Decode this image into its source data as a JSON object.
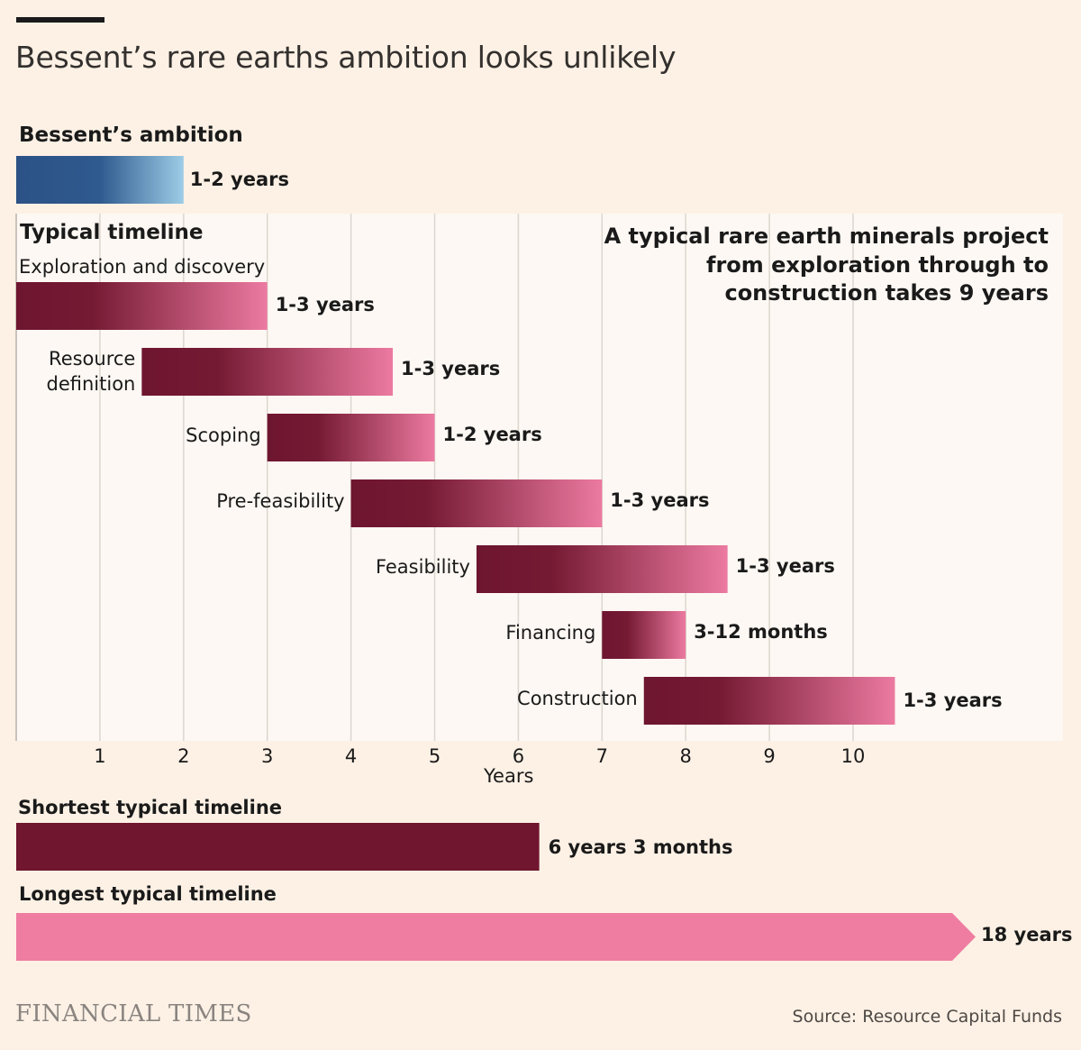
{
  "title": "Bessent’s rare earths ambition looks unlikely",
  "callout": [
    "A typical rare earth minerals project",
    "from exploration through to",
    "construction takes 9 years"
  ],
  "source": "Source: Resource Capital Funds",
  "publisher": "FINANCIAL TIMES",
  "colors": {
    "background": "#fdf1e5",
    "panel": "#fdf8f3",
    "claret_dark": "#6e1530",
    "claret_light": "#ec7aa1",
    "ambition_dark": "#2c5286",
    "ambition_light": "#9ccce6",
    "shortest": "#70162f",
    "longest": "#ee7da1",
    "gridline": "#dcd6cf"
  },
  "chart_data": {
    "type": "gantt",
    "xlabel": "Years",
    "xlim": [
      0,
      11.5
    ],
    "xticks": [
      1,
      2,
      3,
      4,
      5,
      6,
      7,
      8,
      9,
      10
    ],
    "ambition": {
      "heading": "Bessent’s ambition",
      "start": 0,
      "end": 2,
      "label": "1-2 years"
    },
    "typical_heading": "Typical timeline",
    "stages": [
      {
        "name": "Exploration and discovery",
        "start": 0,
        "end": 3,
        "duration": "1-3 years"
      },
      {
        "name": "Resource definition",
        "start": 1.5,
        "end": 4.5,
        "duration": "1-3 years"
      },
      {
        "name": "Scoping",
        "start": 3,
        "end": 5,
        "duration": "1-2 years"
      },
      {
        "name": "Pre-feasibility",
        "start": 4,
        "end": 7,
        "duration": "1-3 years"
      },
      {
        "name": "Feasibility",
        "start": 5.5,
        "end": 8.5,
        "duration": "1-3 years"
      },
      {
        "name": "Financing",
        "start": 7,
        "end": 8,
        "duration": "3-12 months"
      },
      {
        "name": "Construction",
        "start": 7.5,
        "end": 10.5,
        "duration": "1-3 years"
      }
    ],
    "shortest": {
      "heading": "Shortest typical timeline",
      "value": 6.25,
      "label": "6 years 3 months"
    },
    "longest": {
      "heading": "Longest typical timeline",
      "value": 18,
      "label": "18 years"
    }
  }
}
